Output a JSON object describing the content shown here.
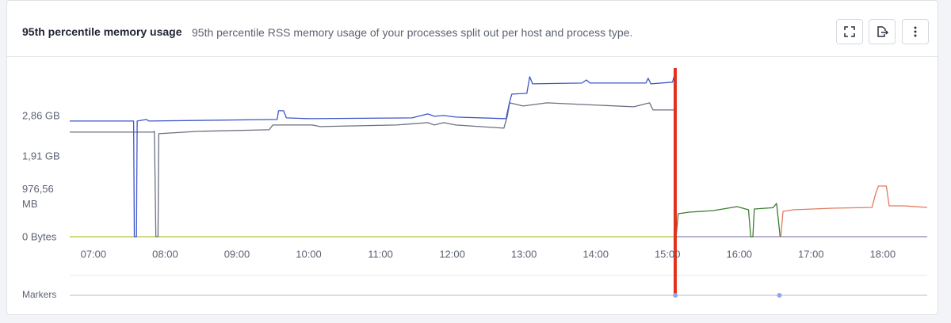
{
  "chart_data": {
    "type": "line",
    "title": "95th percentile memory usage",
    "subtitle": "95th percentile RSS memory usage of your processes split out per host and process type.",
    "xlim": [
      6.67,
      18.62
    ],
    "xticks": [
      {
        "value": 7,
        "label": "07:00"
      },
      {
        "value": 8,
        "label": "08:00"
      },
      {
        "value": 9,
        "label": "09:00"
      },
      {
        "value": 10,
        "label": "10:00"
      },
      {
        "value": 11,
        "label": "11:00"
      },
      {
        "value": 12,
        "label": "12:00"
      },
      {
        "value": 13,
        "label": "13:00"
      },
      {
        "value": 14,
        "label": "14:00"
      },
      {
        "value": 15,
        "label": "15:00"
      },
      {
        "value": 16,
        "label": "16:00"
      },
      {
        "value": 17,
        "label": "17:00"
      },
      {
        "value": 18,
        "label": "18:00"
      }
    ],
    "ylim": [
      0,
      4000
    ],
    "yticks": [
      {
        "value": 0,
        "label": "0 Bytes"
      },
      {
        "value": 976.5625,
        "label": "976,56 MB"
      },
      {
        "value": 1953.125,
        "label": "1,91 GB"
      },
      {
        "value": 2929.6875,
        "label": "2,86 GB"
      }
    ],
    "grid": false,
    "series": [
      {
        "color": "#b5c13a",
        "x": [
          6.67,
          15.1
        ],
        "values": [
          0,
          0
        ]
      },
      {
        "color": "#8a86b8",
        "x": [
          15.1,
          18.62
        ],
        "values": [
          0,
          0
        ]
      },
      {
        "color": "#6b6f80",
        "x": [
          6.67,
          7.83,
          7.85,
          7.87,
          7.9,
          7.91,
          8.46,
          9.45,
          9.5,
          10.05,
          10.16,
          11.22,
          11.66,
          11.75,
          11.88,
          12.05,
          12.72,
          12.77,
          12.8,
          12.99,
          13.32,
          14.53,
          14.75,
          14.8,
          15.09
        ],
        "values": [
          2528,
          2528,
          2547,
          0,
          0,
          2490,
          2547,
          2585,
          2700,
          2700,
          2662,
          2700,
          2757,
          2700,
          2757,
          2700,
          2623,
          2930,
          3236,
          3159,
          3236,
          3140,
          3236,
          3064,
          3064
        ]
      },
      {
        "color": "#3d55c9",
        "x": [
          6.67,
          7.56,
          7.57,
          7.6,
          7.61,
          7.74,
          7.77,
          9.56,
          9.58,
          9.65,
          9.69,
          10.01,
          11.44,
          11.66,
          11.75,
          11.88,
          12.05,
          12.75,
          12.8,
          12.83,
          13.04,
          13.08,
          13.12,
          13.81,
          13.87,
          13.92,
          14.7,
          14.73,
          14.77,
          15.07,
          15.09
        ],
        "values": [
          2796,
          2796,
          0,
          0,
          2796,
          2834,
          2796,
          2834,
          3045,
          3045,
          2872,
          2853,
          2872,
          2968,
          2911,
          2930,
          2891,
          2853,
          3255,
          3447,
          3466,
          3868,
          3696,
          3715,
          3790,
          3715,
          3715,
          3830,
          3696,
          3735,
          3868
        ]
      },
      {
        "color": "#3a7d2c",
        "x": [
          15.12,
          15.15,
          15.3,
          15.64,
          15.97,
          16.13,
          16.16,
          16.19,
          16.21,
          16.47,
          16.52,
          16.57
        ],
        "values": [
          0,
          555,
          593,
          632,
          727,
          651,
          0,
          0,
          670,
          700,
          804,
          0
        ]
      },
      {
        "color": "#e07a60",
        "x": [
          16.58,
          16.61,
          16.75,
          17.3,
          17.85,
          17.9,
          17.94,
          18.05,
          18.09,
          18.29,
          18.62
        ],
        "values": [
          0,
          612,
          651,
          689,
          708,
          1034,
          1225,
          1225,
          746,
          746,
          708
        ]
      }
    ],
    "markers": {
      "label": "Markers",
      "x": [
        15.11,
        16.56
      ]
    }
  }
}
